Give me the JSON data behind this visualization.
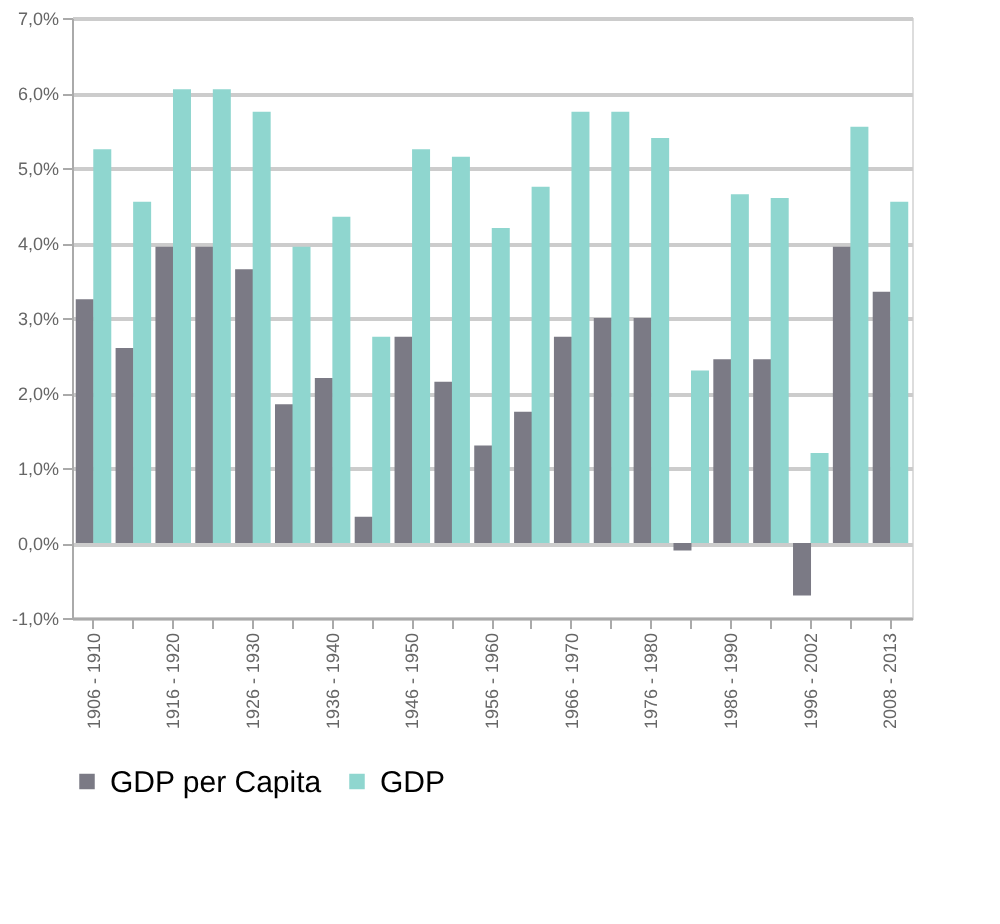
{
  "chart_data": {
    "type": "bar",
    "categories": [
      "1906 - 1910",
      null,
      "1916 - 1920",
      null,
      "1926 - 1930",
      null,
      "1936 - 1940",
      null,
      "1946 - 1950",
      null,
      "1956 - 1960",
      null,
      "1966 - 1970",
      null,
      "1976 - 1980",
      null,
      "1986 - 1990",
      null,
      "1996 - 2002",
      null,
      "2008 - 2013"
    ],
    "series": [
      {
        "name": "GDP per Capita",
        "color": "#7b7a85",
        "values": [
          3.25,
          2.6,
          3.95,
          3.95,
          3.65,
          1.85,
          2.2,
          0.35,
          2.75,
          2.15,
          1.3,
          1.75,
          2.75,
          3.0,
          3.0,
          -0.1,
          2.45,
          2.45,
          -0.7,
          3.95,
          3.35
        ]
      },
      {
        "name": "GDP",
        "color": "#8fd6cf",
        "values": [
          5.25,
          4.55,
          6.05,
          6.05,
          5.75,
          3.95,
          4.35,
          2.75,
          5.25,
          5.15,
          4.2,
          4.75,
          5.75,
          5.75,
          5.4,
          2.3,
          4.65,
          4.6,
          1.2,
          5.55,
          4.55
        ]
      }
    ],
    "ylim": [
      -1,
      7
    ],
    "yticks": [
      {
        "value": -1,
        "label": "-1,0%"
      },
      {
        "value": 0,
        "label": "0,0%"
      },
      {
        "value": 1,
        "label": "1,0%"
      },
      {
        "value": 2,
        "label": "2,0%"
      },
      {
        "value": 3,
        "label": "3,0%"
      },
      {
        "value": 4,
        "label": "4,0%"
      },
      {
        "value": 5,
        "label": "5,0%"
      },
      {
        "value": 6,
        "label": "6,0%"
      },
      {
        "value": 7,
        "label": "7,0%"
      }
    ],
    "grid": "y",
    "legend": "bottom"
  }
}
